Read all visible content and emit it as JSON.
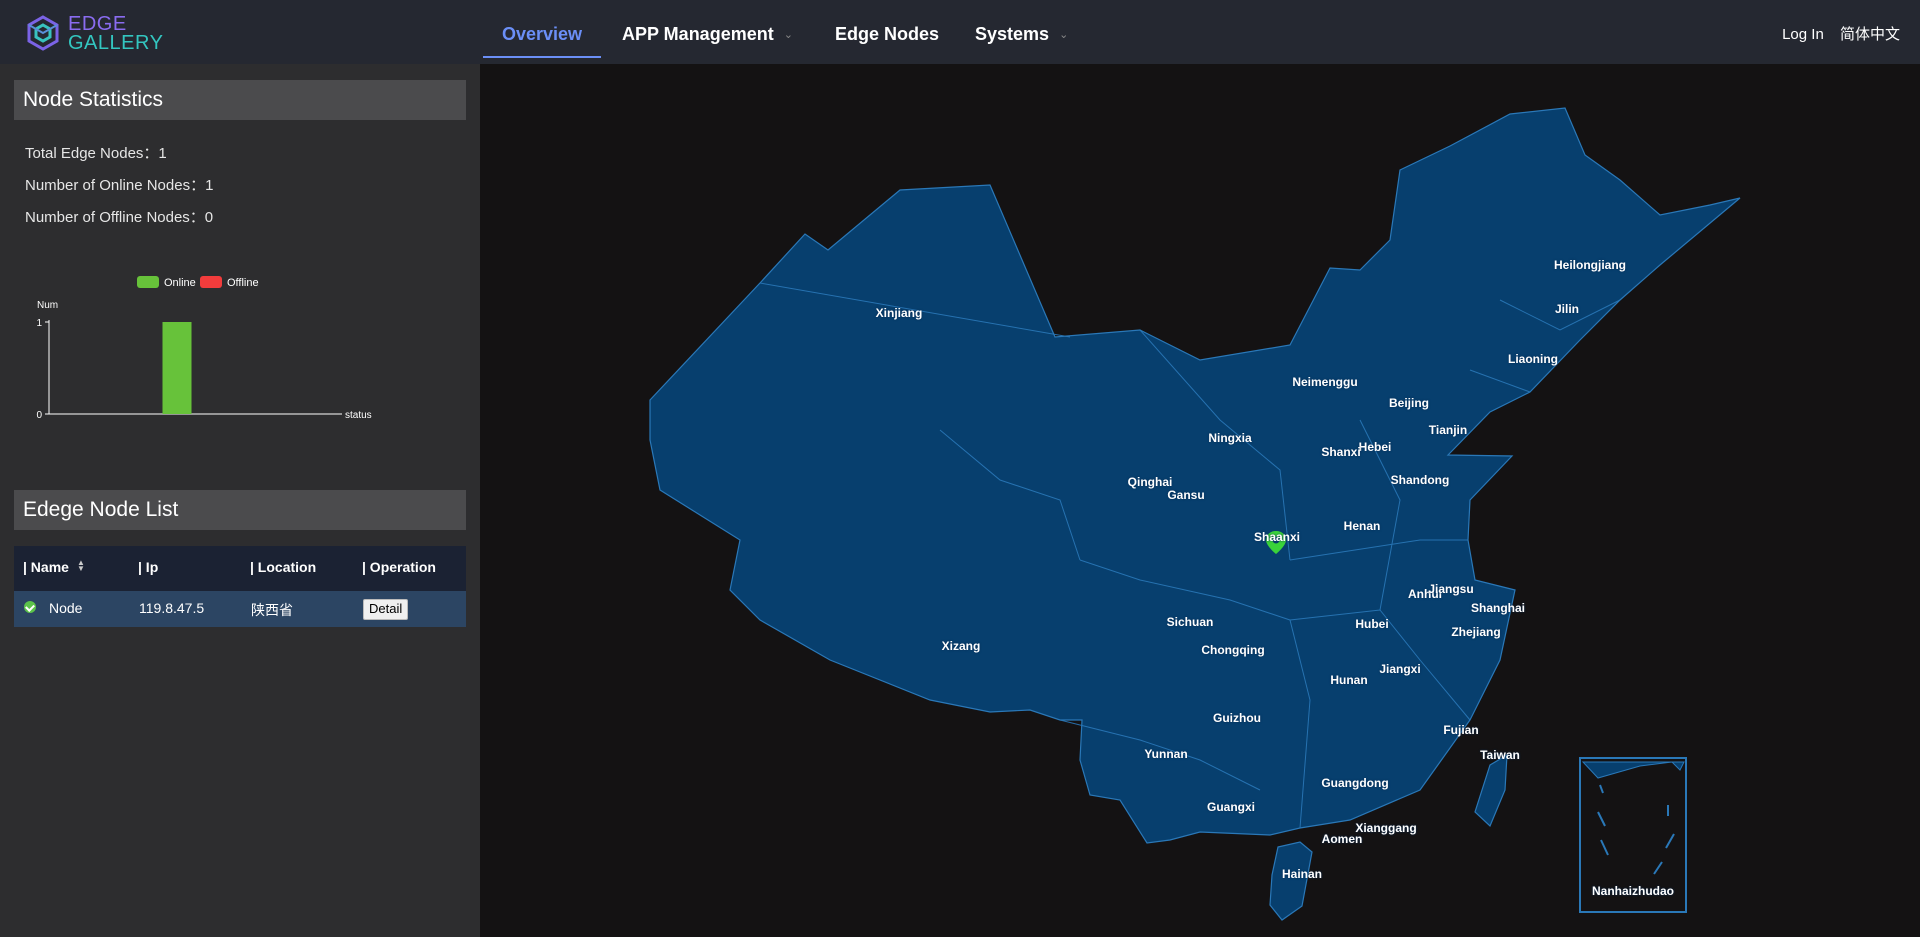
{
  "header": {
    "logo_line1": "EDGE",
    "logo_line2": "GALLERY",
    "nav": [
      {
        "label": "Overview",
        "active": true
      },
      {
        "label": "APP Management",
        "dropdown": true
      },
      {
        "label": "Edge Nodes"
      },
      {
        "label": "Systems",
        "dropdown": true
      }
    ],
    "login": "Log In",
    "language": "简体中文"
  },
  "node_statistics": {
    "title": "Node Statistics",
    "total_label": "Total Edge Nodes：1",
    "online_label": "Number of Online Nodes：1",
    "offline_label": "Number of Offline Nodes：0"
  },
  "chart_data": {
    "type": "bar",
    "series": [
      {
        "name": "Online",
        "values": [
          1
        ]
      },
      {
        "name": "Offline",
        "values": [
          0
        ]
      }
    ],
    "categories": [
      ""
    ],
    "xlabel": "status",
    "ylabel": "Num",
    "ylim": [
      0,
      1
    ],
    "yticks": [
      "0",
      "1"
    ],
    "legend_position": "top",
    "colors": {
      "Online": "#67c23a",
      "Offline": "#f23c3c"
    }
  },
  "node_list": {
    "title": "Edege Node List",
    "columns": [
      "| Name",
      "| Ip",
      "| Location",
      "| Operation"
    ],
    "rows": [
      {
        "name": "Node",
        "ip": "119.8.47.5",
        "location": "陕西省",
        "operation": "Detail",
        "status": "online"
      }
    ]
  },
  "map": {
    "provinces": [
      "Xinjiang",
      "Xizang",
      "Qinghai",
      "Gansu",
      "Ningxia",
      "Neimenggu",
      "Heilongjiang",
      "Jilin",
      "Liaoning",
      "Beijing",
      "Tianjin",
      "Hebei",
      "Shanxi",
      "Shandong",
      "Henan",
      "Shaanxi",
      "Sichuan",
      "Chongqing",
      "Hubei",
      "Anhui",
      "Jiangsu",
      "Shanghai",
      "Zhejiang",
      "Jiangxi",
      "Hunan",
      "Guizhou",
      "Yunnan",
      "Guangxi",
      "Guangdong",
      "Fujian",
      "Taiwan",
      "Xianggang",
      "Aomen",
      "Hainan",
      "Nanhaizhudao"
    ],
    "colors": {
      "land": "#073f6e",
      "border": "#2a78b8",
      "marker": "#3ad33a"
    }
  }
}
